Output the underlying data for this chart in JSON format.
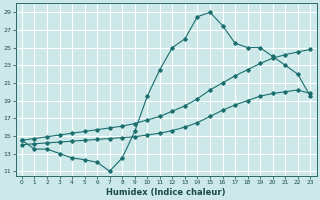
{
  "xlabel": "Humidex (Indice chaleur)",
  "ylabel": "",
  "background_color": "#cce8e8",
  "grid_color": "#b0d8d8",
  "line_color": "#1a6e6e",
  "xlim": [
    -0.5,
    23.5
  ],
  "ylim": [
    10.5,
    30
  ],
  "yticks": [
    11,
    13,
    15,
    17,
    19,
    21,
    23,
    25,
    27,
    29
  ],
  "xticks": [
    0,
    1,
    2,
    3,
    4,
    5,
    6,
    7,
    8,
    9,
    10,
    11,
    12,
    13,
    14,
    15,
    16,
    17,
    18,
    19,
    20,
    21,
    22,
    23
  ],
  "curve1_x": [
    0,
    1,
    2,
    3,
    4,
    5,
    6,
    7,
    8,
    9,
    10,
    11,
    12,
    13,
    14,
    15,
    16,
    17,
    18,
    19,
    20,
    21,
    22,
    23
  ],
  "curve1_y": [
    14.5,
    13.5,
    13.5,
    13.0,
    12.5,
    12.3,
    12.0,
    11.0,
    12.5,
    15.5,
    19.5,
    22.5,
    25.0,
    26.0,
    28.5,
    29.0,
    27.5,
    25.5,
    25.0,
    25.0,
    24.0,
    23.0,
    22.0,
    19.5
  ],
  "curve2_x": [
    0,
    1,
    2,
    3,
    4,
    5,
    6,
    7,
    8,
    9,
    10,
    11,
    12,
    13,
    14,
    15,
    16,
    17,
    18,
    19,
    20,
    21,
    22,
    23
  ],
  "curve2_y": [
    14.5,
    14.7,
    14.9,
    15.1,
    15.3,
    15.5,
    15.7,
    15.9,
    16.1,
    16.4,
    16.8,
    17.2,
    17.8,
    18.4,
    19.2,
    20.2,
    21.0,
    21.8,
    22.5,
    23.2,
    23.8,
    24.2,
    24.5,
    24.8
  ],
  "curve3_x": [
    0,
    1,
    2,
    3,
    4,
    5,
    6,
    7,
    8,
    9,
    10,
    11,
    12,
    13,
    14,
    15,
    16,
    17,
    18,
    19,
    20,
    21,
    22,
    23
  ],
  "curve3_y": [
    14.0,
    14.1,
    14.2,
    14.3,
    14.4,
    14.5,
    14.6,
    14.7,
    14.8,
    14.9,
    15.1,
    15.3,
    15.6,
    16.0,
    16.5,
    17.2,
    17.9,
    18.5,
    19.0,
    19.5,
    19.8,
    20.0,
    20.2,
    19.8
  ]
}
